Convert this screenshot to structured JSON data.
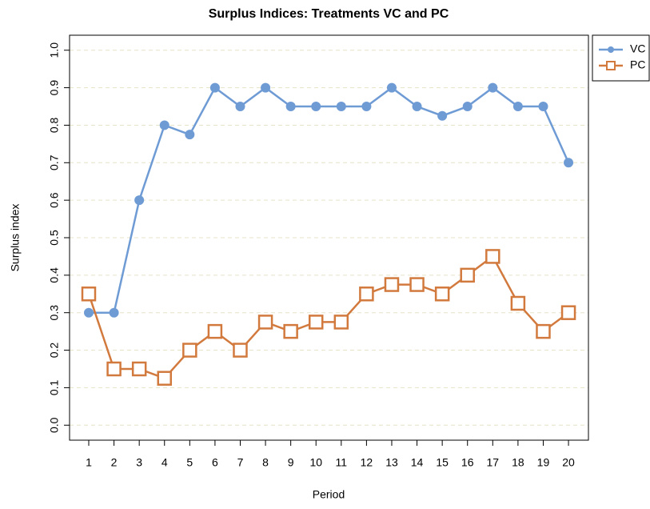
{
  "chart_data": {
    "type": "line",
    "title": "Surplus Indices: Treatments VC and PC",
    "x_label": "Period",
    "y_label": "Surplus index",
    "x": [
      1,
      2,
      3,
      4,
      5,
      6,
      7,
      8,
      9,
      10,
      11,
      12,
      13,
      14,
      15,
      16,
      17,
      18,
      19,
      20
    ],
    "series": [
      {
        "name": "VC",
        "color": "#6f9bd5",
        "marker": "circle",
        "values": [
          0.3,
          0.3,
          0.6,
          0.8,
          0.775,
          0.9,
          0.85,
          0.9,
          0.85,
          0.85,
          0.85,
          0.85,
          0.9,
          0.85,
          0.825,
          0.85,
          0.9,
          0.85,
          0.85,
          0.7
        ]
      },
      {
        "name": "PC",
        "color": "#d27a3e",
        "marker": "square",
        "values": [
          0.35,
          0.15,
          0.15,
          0.125,
          0.2,
          0.25,
          0.2,
          0.275,
          0.25,
          0.275,
          0.275,
          0.35,
          0.375,
          0.375,
          0.35,
          0.4,
          0.45,
          0.325,
          0.25,
          0.3
        ]
      }
    ],
    "xlim": [
      0.24,
      20.79
    ],
    "ylim": [
      -0.04,
      1.04
    ],
    "xticks": [
      1,
      2,
      3,
      4,
      5,
      6,
      7,
      8,
      9,
      10,
      11,
      12,
      13,
      14,
      15,
      16,
      17,
      18,
      19,
      20
    ],
    "yticks": [
      {
        "value": 0,
        "label": "0.0"
      },
      0.1,
      0.2,
      0.3,
      0.4,
      0.5,
      0.6,
      0.7,
      0.8,
      0.9,
      {
        "value": 1,
        "label": "1.0"
      }
    ],
    "grid": true,
    "legend": "top-right"
  }
}
